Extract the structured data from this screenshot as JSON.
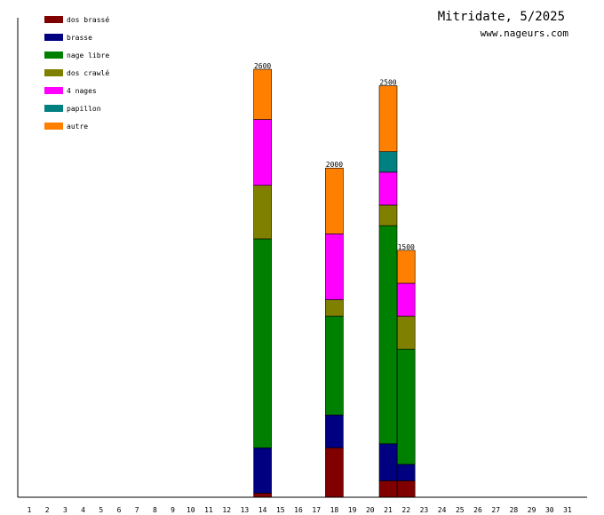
{
  "chart_data": {
    "type": "bar",
    "stacked": true,
    "title": "Mitridate, 5/2025",
    "subtitle": "www.nageurs.com",
    "xlabel": "",
    "ylabel": "",
    "ylim": [
      0,
      2600
    ],
    "categories": [
      "1",
      "2",
      "3",
      "4",
      "5",
      "6",
      "7",
      "8",
      "9",
      "10",
      "11",
      "12",
      "13",
      "14",
      "15",
      "16",
      "17",
      "18",
      "19",
      "20",
      "21",
      "22",
      "23",
      "24",
      "25",
      "26",
      "27",
      "28",
      "29",
      "30",
      "31"
    ],
    "legend_position": "top-left",
    "series": [
      {
        "name": "dos brassé",
        "color": "#800000",
        "values": [
          0,
          0,
          0,
          0,
          0,
          0,
          0,
          0,
          0,
          0,
          0,
          0,
          0,
          25,
          0,
          0,
          0,
          300,
          0,
          0,
          100,
          100,
          0,
          0,
          0,
          0,
          0,
          0,
          0,
          0,
          0
        ]
      },
      {
        "name": "brasse",
        "color": "#000080",
        "values": [
          0,
          0,
          0,
          0,
          0,
          0,
          0,
          0,
          0,
          0,
          0,
          0,
          0,
          275,
          0,
          0,
          0,
          200,
          0,
          0,
          225,
          100,
          0,
          0,
          0,
          0,
          0,
          0,
          0,
          0,
          0
        ]
      },
      {
        "name": "nage libre",
        "color": "#008000",
        "values": [
          0,
          0,
          0,
          0,
          0,
          0,
          0,
          0,
          0,
          0,
          0,
          0,
          0,
          1270,
          0,
          0,
          0,
          600,
          0,
          0,
          1325,
          700,
          0,
          0,
          0,
          0,
          0,
          0,
          0,
          0,
          0
        ]
      },
      {
        "name": "dos crawlé",
        "color": "#808000",
        "values": [
          0,
          0,
          0,
          0,
          0,
          0,
          0,
          0,
          0,
          0,
          0,
          0,
          0,
          325,
          0,
          0,
          0,
          100,
          0,
          0,
          125,
          200,
          0,
          0,
          0,
          0,
          0,
          0,
          0,
          0,
          0
        ]
      },
      {
        "name": "4 nages",
        "color": "#ff00ff",
        "values": [
          0,
          0,
          0,
          0,
          0,
          0,
          0,
          0,
          0,
          0,
          0,
          0,
          0,
          400,
          0,
          0,
          0,
          400,
          0,
          0,
          200,
          200,
          0,
          0,
          0,
          0,
          0,
          0,
          0,
          0,
          0
        ]
      },
      {
        "name": "papillon",
        "color": "#008080",
        "values": [
          0,
          0,
          0,
          0,
          0,
          0,
          0,
          0,
          0,
          0,
          0,
          0,
          0,
          0,
          0,
          0,
          0,
          0,
          0,
          0,
          125,
          0,
          0,
          0,
          0,
          0,
          0,
          0,
          0,
          0,
          0
        ]
      },
      {
        "name": "autre",
        "color": "#ff8000",
        "values": [
          0,
          0,
          0,
          0,
          0,
          0,
          0,
          0,
          0,
          0,
          0,
          0,
          0,
          305,
          0,
          0,
          0,
          400,
          0,
          0,
          400,
          200,
          0,
          0,
          0,
          0,
          0,
          0,
          0,
          0,
          0
        ]
      }
    ],
    "totals": [
      {
        "day": "14",
        "value": "2600"
      },
      {
        "day": "18",
        "value": "2000"
      },
      {
        "day": "21",
        "value": "2500"
      },
      {
        "day": "22",
        "value": "1500"
      }
    ]
  }
}
